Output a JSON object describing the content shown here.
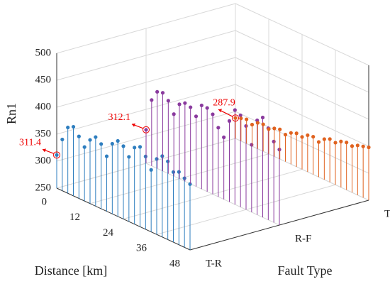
{
  "chart_data": {
    "type": "stem3",
    "zlabel": "Rn1",
    "xlabel": "Distance [km]",
    "ylabel": "Fault Type",
    "x": [
      0,
      2,
      4,
      6,
      8,
      10,
      12,
      14,
      16,
      18,
      20,
      22,
      24,
      26,
      28,
      30,
      32,
      34,
      36,
      38,
      40,
      42,
      44,
      46,
      48
    ],
    "xlim": [
      0,
      48
    ],
    "xticks": [
      0,
      12,
      24,
      36,
      48
    ],
    "categories": [
      "T-R",
      "R-F",
      "T-F"
    ],
    "zlim": [
      250,
      500
    ],
    "zticks": [
      250,
      300,
      350,
      400,
      450,
      500
    ],
    "grid": true,
    "series": [
      {
        "name": "T-R",
        "color": "#2e7ebf",
        "values": [
          311.4,
          345,
          372,
          378,
          365,
          350,
          368,
          378,
          370,
          352,
          380,
          390,
          385,
          370,
          392,
          398,
          385,
          365,
          390,
          400,
          395,
          380,
          385,
          378,
          372
        ]
      },
      {
        "name": "R-F",
        "color": "#8a3a9e",
        "values": [
          312.1,
          372,
          392,
          395,
          385,
          365,
          388,
          395,
          392,
          380,
          405,
          405,
          398,
          378,
          365,
          400,
          425,
          420,
          405,
          375,
          425,
          435,
          420,
          400,
          390
        ]
      },
      {
        "name": "T-F",
        "color": "#e0621f",
        "values": [
          287.9,
          292,
          295,
          290,
          298,
          300,
          296,
          302,
          305,
          300,
          308,
          312,
          310,
          318,
          320,
          315,
          325,
          330,
          328,
          335,
          338,
          336,
          342,
          345,
          348
        ]
      }
    ]
  }
}
